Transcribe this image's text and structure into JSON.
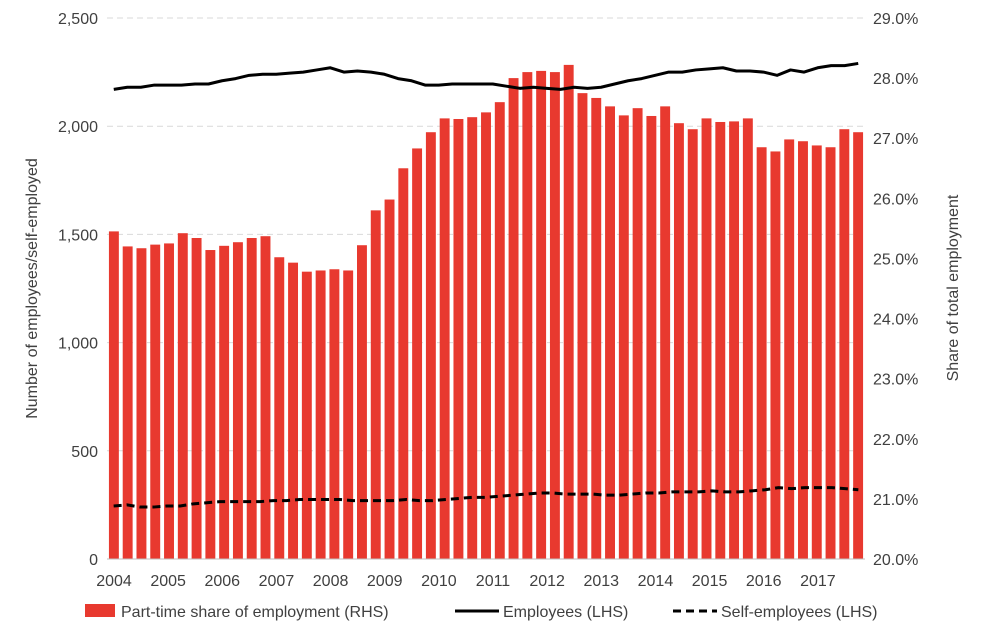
{
  "chart_data": {
    "type": "bar",
    "x_labels": [
      "2004",
      "2005",
      "2006",
      "2007",
      "2008",
      "2009",
      "2010",
      "2011",
      "2012",
      "2013",
      "2014",
      "2015",
      "2016",
      "2017"
    ],
    "left_axis": {
      "title": "Number of employees/self-employed",
      "range": [
        0,
        2500
      ],
      "ticks": [
        "0",
        "500",
        "1,000",
        "1,500",
        "2,000",
        "2,500"
      ],
      "tick_values": [
        0,
        500,
        1000,
        1500,
        2000,
        2500
      ]
    },
    "right_axis": {
      "title": "Share of total employment",
      "range": [
        20.0,
        29.0
      ],
      "ticks": [
        "20.0%",
        "21.0%",
        "22.0%",
        "23.0%",
        "24.0%",
        "25.0%",
        "26.0%",
        "27.0%",
        "28.0%",
        "29.0%"
      ],
      "tick_values": [
        20,
        21,
        22,
        23,
        24,
        25,
        26,
        27,
        28,
        29
      ]
    },
    "grid": true,
    "legend_position": "bottom",
    "series": [
      {
        "name": "Part-time share of employment (RHS)",
        "type": "bar",
        "axis": "right",
        "color": "#e8392f",
        "values": [
          25.45,
          25.2,
          25.17,
          25.23,
          25.25,
          25.42,
          25.34,
          25.14,
          25.21,
          25.27,
          25.34,
          25.37,
          25.02,
          24.93,
          24.78,
          24.8,
          24.82,
          24.8,
          25.22,
          25.8,
          25.98,
          26.5,
          26.83,
          27.1,
          27.33,
          27.32,
          27.35,
          27.43,
          27.6,
          28.0,
          28.1,
          28.12,
          28.1,
          28.22,
          27.75,
          27.67,
          27.53,
          27.38,
          27.5,
          27.37,
          27.53,
          27.25,
          27.15,
          27.33,
          27.27,
          27.28,
          27.33,
          26.85,
          26.78,
          26.98,
          26.95,
          26.88,
          26.85,
          27.15,
          27.1
        ]
      },
      {
        "name": "Employees (LHS)",
        "type": "line",
        "axis": "left",
        "color": "#000000",
        "style": "solid",
        "values": [
          2170,
          2180,
          2180,
          2190,
          2190,
          2190,
          2195,
          2195,
          2210,
          2220,
          2235,
          2240,
          2240,
          2245,
          2250,
          2260,
          2270,
          2250,
          2255,
          2250,
          2240,
          2220,
          2210,
          2190,
          2190,
          2195,
          2195,
          2195,
          2195,
          2185,
          2175,
          2180,
          2175,
          2170,
          2180,
          2175,
          2180,
          2195,
          2210,
          2220,
          2235,
          2250,
          2250,
          2260,
          2265,
          2270,
          2255,
          2255,
          2250,
          2235,
          2260,
          2250,
          2270,
          2280,
          2280,
          2290
        ]
      },
      {
        "name": "Self-employees (LHS)",
        "type": "line",
        "axis": "left",
        "color": "#000000",
        "style": "dashed",
        "values": [
          245,
          250,
          240,
          240,
          245,
          245,
          255,
          260,
          265,
          265,
          265,
          265,
          270,
          270,
          275,
          275,
          275,
          275,
          270,
          270,
          270,
          270,
          275,
          270,
          270,
          275,
          280,
          285,
          285,
          290,
          295,
          300,
          305,
          305,
          300,
          300,
          300,
          295,
          295,
          300,
          305,
          305,
          310,
          310,
          310,
          315,
          310,
          310,
          315,
          320,
          330,
          325,
          330,
          330,
          330,
          325,
          320
        ]
      }
    ]
  }
}
